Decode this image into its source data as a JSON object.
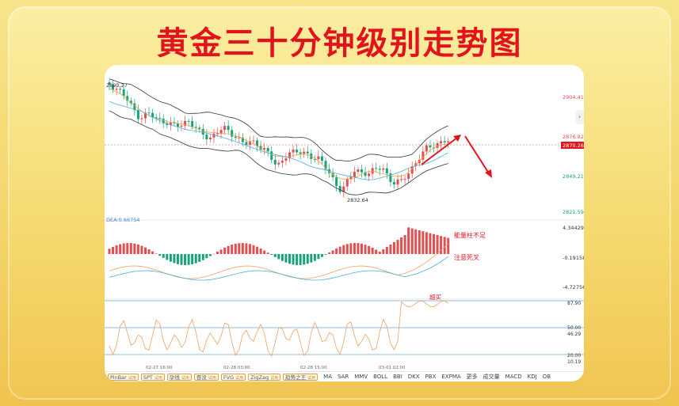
{
  "title": "黄金三十分钟级别走势图",
  "chart_data": {
    "type": "candlestick",
    "price_panel": {
      "y_ticks": [
        {
          "value": 2904.41,
          "label": "2904.41",
          "color": "#e05050"
        },
        {
          "value": 2876.82,
          "label": "2876.82",
          "color": "#e05050"
        },
        {
          "value": 2849.21,
          "label": "2849.21",
          "color": "#1aa37a"
        },
        {
          "value": 2821.59,
          "label": "2821.59",
          "color": "#1aa37a"
        }
      ],
      "current_price": {
        "value": 2870.26,
        "label": "2870.26",
        "color": "#e0141d"
      },
      "high_label": "2893.27",
      "low_label": "2832.64",
      "annotation_arrows": [
        "up-red-arrow",
        "down-red-arrow"
      ]
    },
    "macd_panel": {
      "label": "DEA:0.66754",
      "y_ticks": [
        "4.34429",
        "-0.19158",
        "-4.72756"
      ],
      "annotations": [
        "能量柱不足",
        "注意死叉"
      ]
    },
    "rsi_panel": {
      "y_ticks": [
        "87.90",
        "50.00",
        "46.29",
        "20.00",
        "10.19"
      ],
      "annotation": "超买"
    },
    "x_ticks": [
      "02-27 16:00",
      "02-28 03:00",
      "02-28 15:00",
      "03-01 02:00"
    ]
  },
  "toolbar": {
    "tools": [
      {
        "name": "PinBar",
        "tag": "试用"
      },
      {
        "name": "SPT",
        "tag": "试用"
      },
      {
        "name": "孕线",
        "tag": "试用"
      },
      {
        "name": "吞没",
        "tag": "试用"
      },
      {
        "name": "FVG",
        "tag": "试用"
      },
      {
        "name": "ZigZag",
        "tag": "试用"
      },
      {
        "name": "趋势之王",
        "tag": "试用"
      }
    ],
    "indicators": [
      "MA",
      "SAR",
      "MMV",
      "BOLL",
      "BBI",
      "DKX",
      "PBX",
      "EXPMA",
      "更多",
      "成交量",
      "MACD",
      "KDJ",
      "OB"
    ]
  }
}
